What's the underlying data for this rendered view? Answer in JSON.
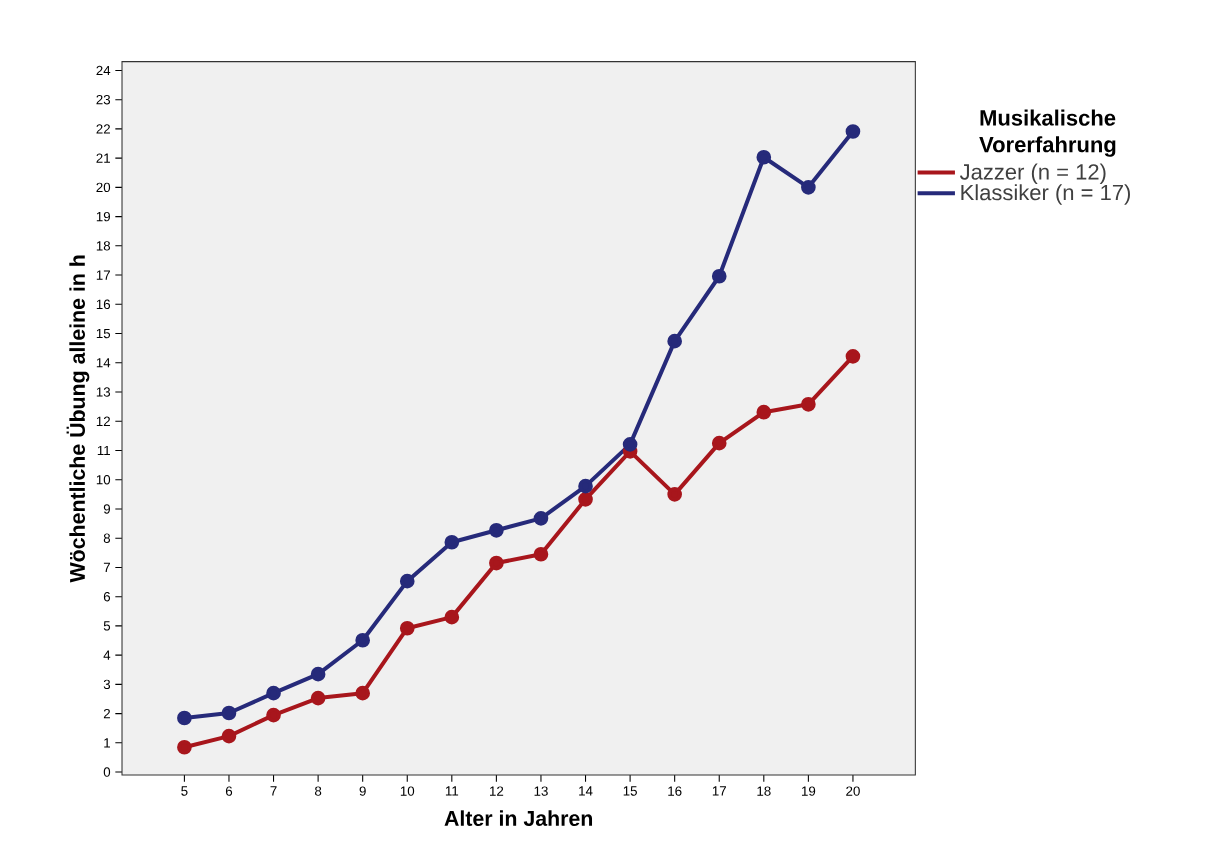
{
  "chart_data": {
    "type": "line",
    "xlabel": "Alter in Jahren",
    "ylabel": "Wöchentliche Übung alleine in h",
    "legend_title": "Musikalische Vorerfahrung",
    "categories": [
      "5",
      "6",
      "7",
      "8",
      "9",
      "10",
      "11",
      "12",
      "13",
      "14",
      "15",
      "16",
      "17",
      "18",
      "19",
      "20"
    ],
    "series": [
      {
        "name": "Jazzer (n = 12)",
        "color": "#a8161c",
        "values": [
          0.85,
          1.23,
          1.95,
          2.53,
          2.7,
          4.92,
          5.3,
          7.15,
          7.45,
          9.33,
          10.97,
          9.5,
          11.25,
          12.31,
          12.58,
          14.22
        ]
      },
      {
        "name": "Klassiker (n = 17)",
        "color": "#262a7a",
        "values": [
          1.85,
          2.02,
          2.7,
          3.35,
          4.51,
          6.53,
          7.86,
          8.27,
          8.68,
          9.78,
          11.21,
          14.74,
          16.96,
          21.03,
          20.0,
          21.91
        ]
      }
    ],
    "ylim": [
      -0.1,
      24.3
    ],
    "yticks": [
      0,
      1,
      2,
      3,
      4,
      5,
      6,
      7,
      8,
      9,
      10,
      11,
      12,
      13,
      14,
      15,
      16,
      17,
      18,
      19,
      20,
      21,
      22,
      23,
      24
    ],
    "grid": false,
    "legend": "right",
    "marker": "circle",
    "line_style": "solid"
  }
}
